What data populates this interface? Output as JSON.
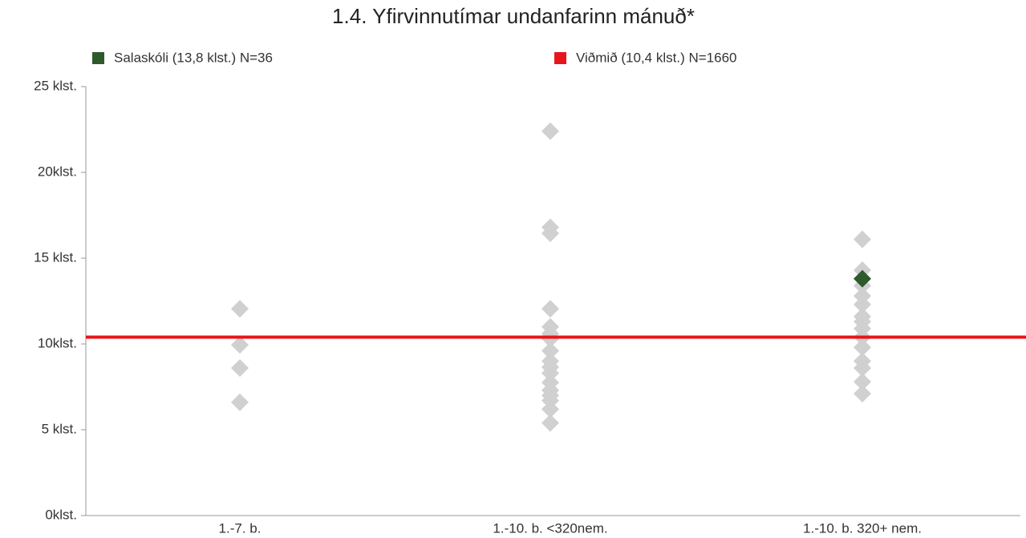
{
  "chart_data": {
    "type": "strip",
    "title": "1.4. Yfirvinnutímar undanfarinn mánuð*",
    "categories": [
      "1.-7. b.",
      "1.-10. b. <320nem.",
      "1.-10. b. 320+ nem."
    ],
    "ylim": [
      0,
      25
    ],
    "yticks": [
      {
        "value": 0,
        "label": "0klst."
      },
      {
        "value": 5,
        "label": "5 klst."
      },
      {
        "value": 10,
        "label": "10klst."
      },
      {
        "value": 15,
        "label": "15 klst."
      },
      {
        "value": 20,
        "label": "20klst."
      },
      {
        "value": 25,
        "label": "25 klst."
      }
    ],
    "series": [
      {
        "color": "#d0d0d0",
        "values": [
          [
            12.05,
            9.95,
            8.6,
            6.6
          ],
          [
            22.4,
            16.8,
            16.45,
            12.05,
            11.0,
            10.6,
            10.3,
            9.6,
            9.0,
            8.65,
            8.3,
            7.75,
            7.3,
            7.0,
            6.7,
            6.2,
            5.4
          ],
          [
            16.1,
            14.3,
            13.4,
            12.8,
            12.3,
            11.6,
            11.3,
            10.9,
            10.4,
            9.8,
            9.0,
            8.6,
            7.8,
            7.1
          ]
        ]
      },
      {
        "name": "Salaskóli (13,8 klst.) N=36",
        "color": "#2e5a2e",
        "values": [
          null,
          null,
          13.8
        ]
      },
      {
        "name": "Viðmið (10,4 klst.) N=1660",
        "color": "#e8141c",
        "reference": 10.4
      }
    ]
  }
}
